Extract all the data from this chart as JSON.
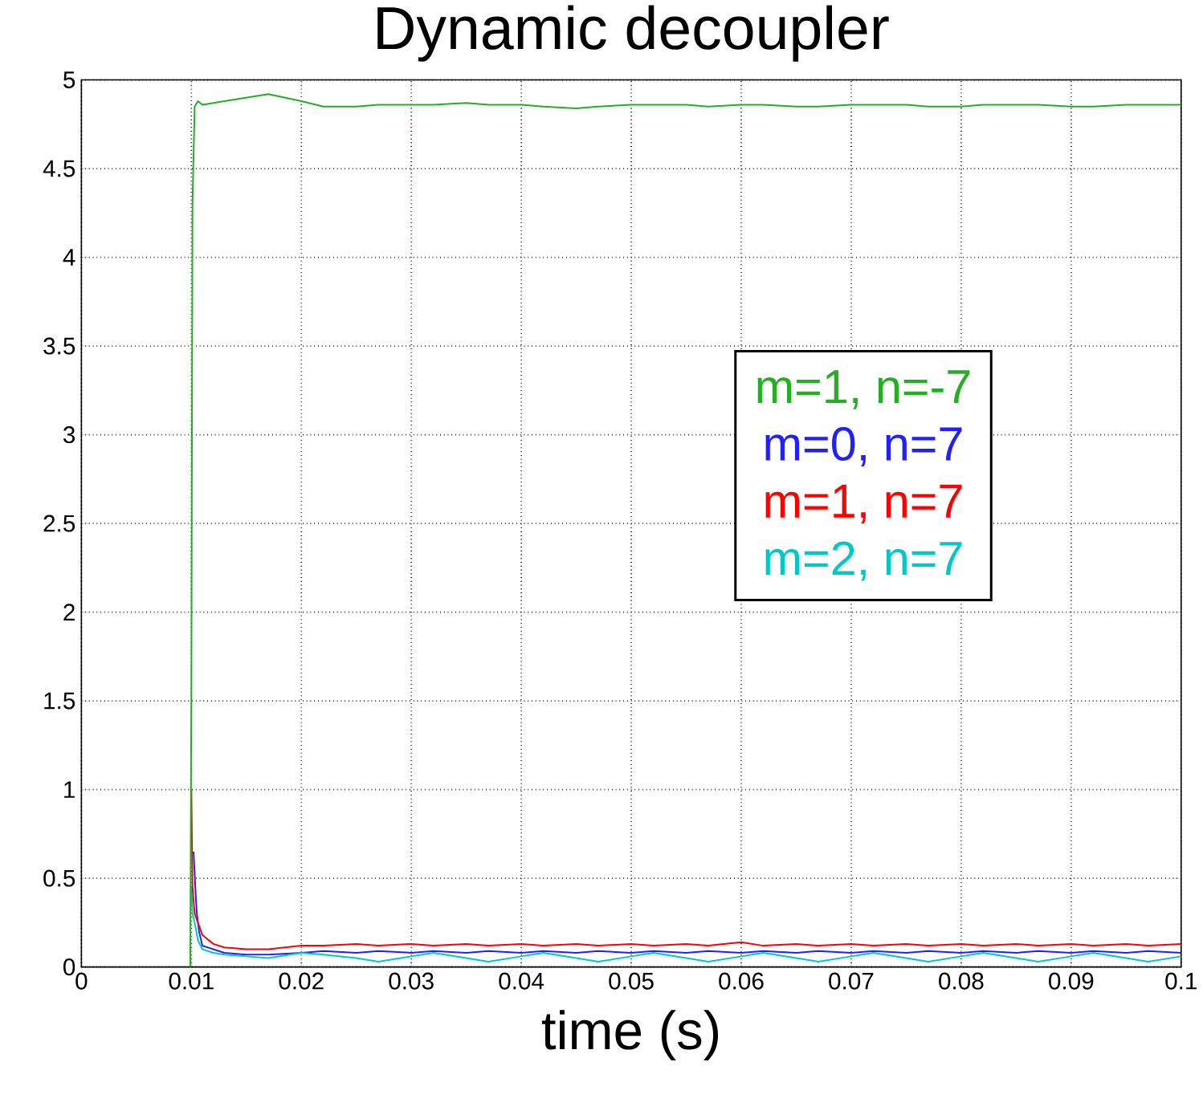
{
  "chart_data": {
    "type": "line",
    "title": "Dynamic decoupler",
    "xlabel": "time (s)",
    "x": [
      0.0099,
      0.01,
      0.0101,
      0.0103,
      0.0106,
      0.011,
      0.012,
      0.013,
      0.015,
      0.017,
      0.02,
      0.022,
      0.025,
      0.027,
      0.03,
      0.032,
      0.035,
      0.037,
      0.04,
      0.042,
      0.045,
      0.047,
      0.05,
      0.052,
      0.055,
      0.057,
      0.06,
      0.062,
      0.065,
      0.067,
      0.07,
      0.072,
      0.075,
      0.077,
      0.08,
      0.082,
      0.085,
      0.087,
      0.09,
      0.092,
      0.095,
      0.097,
      0.1
    ],
    "series": [
      {
        "name": "m=1, n=-7",
        "color": "#22b022",
        "values": [
          0,
          1.6,
          4.3,
          4.85,
          4.88,
          4.86,
          4.87,
          4.88,
          4.9,
          4.92,
          4.88,
          4.85,
          4.85,
          4.86,
          4.86,
          4.86,
          4.87,
          4.86,
          4.86,
          4.85,
          4.84,
          4.85,
          4.86,
          4.86,
          4.86,
          4.85,
          4.86,
          4.86,
          4.85,
          4.85,
          4.86,
          4.86,
          4.86,
          4.85,
          4.85,
          4.86,
          4.86,
          4.86,
          4.85,
          4.85,
          4.86,
          4.86,
          4.86
        ]
      },
      {
        "name": "m=0, n=7",
        "color": "#2020ff",
        "x": [
          0.0102,
          0.0104,
          0.0105,
          0.0107,
          0.011,
          0.012,
          0.013,
          0.015,
          0.017,
          0.02,
          0.022,
          0.025,
          0.027,
          0.03,
          0.032,
          0.035,
          0.037,
          0.04,
          0.042,
          0.045,
          0.047,
          0.05,
          0.052,
          0.055,
          0.057,
          0.06,
          0.062,
          0.065,
          0.067,
          0.07,
          0.072,
          0.075,
          0.077,
          0.08,
          0.082,
          0.085,
          0.087,
          0.09,
          0.092,
          0.095,
          0.097,
          0.1
        ],
        "values": [
          0.65,
          0.4,
          0.3,
          0.2,
          0.12,
          0.1,
          0.08,
          0.07,
          0.07,
          0.08,
          0.09,
          0.08,
          0.09,
          0.08,
          0.09,
          0.08,
          0.09,
          0.08,
          0.09,
          0.08,
          0.09,
          0.08,
          0.09,
          0.08,
          0.09,
          0.08,
          0.09,
          0.08,
          0.09,
          0.08,
          0.09,
          0.08,
          0.09,
          0.08,
          0.09,
          0.08,
          0.09,
          0.08,
          0.09,
          0.08,
          0.09,
          0.08
        ]
      },
      {
        "name": "m=1, n=7",
        "color": "#ff0000",
        "values": [
          null,
          1.0,
          0.45,
          0.3,
          0.25,
          0.18,
          0.13,
          0.11,
          0.1,
          0.1,
          0.12,
          0.12,
          0.13,
          0.12,
          0.13,
          0.12,
          0.13,
          0.12,
          0.13,
          0.12,
          0.13,
          0.12,
          0.13,
          0.12,
          0.13,
          0.12,
          0.14,
          0.12,
          0.13,
          0.12,
          0.13,
          0.12,
          0.13,
          0.12,
          0.13,
          0.12,
          0.13,
          0.12,
          0.13,
          0.12,
          0.13,
          0.12,
          0.13
        ]
      },
      {
        "name": "m=2, n=7",
        "color": "#00c8c8",
        "values": [
          null,
          0.45,
          0.3,
          0.25,
          0.15,
          0.1,
          0.08,
          0.07,
          0.06,
          0.05,
          0.08,
          0.07,
          0.05,
          0.03,
          0.06,
          0.08,
          0.05,
          0.03,
          0.06,
          0.08,
          0.05,
          0.03,
          0.06,
          0.08,
          0.05,
          0.03,
          0.06,
          0.08,
          0.05,
          0.03,
          0.06,
          0.08,
          0.05,
          0.03,
          0.06,
          0.08,
          0.05,
          0.03,
          0.06,
          0.08,
          0.05,
          0.03,
          0.06
        ]
      }
    ],
    "xlim": [
      0,
      0.1
    ],
    "ylim": [
      0,
      5
    ],
    "xticks": [
      0,
      0.01,
      0.02,
      0.03,
      0.04,
      0.05,
      0.06,
      0.07,
      0.08,
      0.09,
      0.1
    ],
    "yticks": [
      0,
      0.5,
      1,
      1.5,
      2,
      2.5,
      3,
      3.5,
      4,
      4.5,
      5
    ],
    "grid": true,
    "legend": "right"
  }
}
